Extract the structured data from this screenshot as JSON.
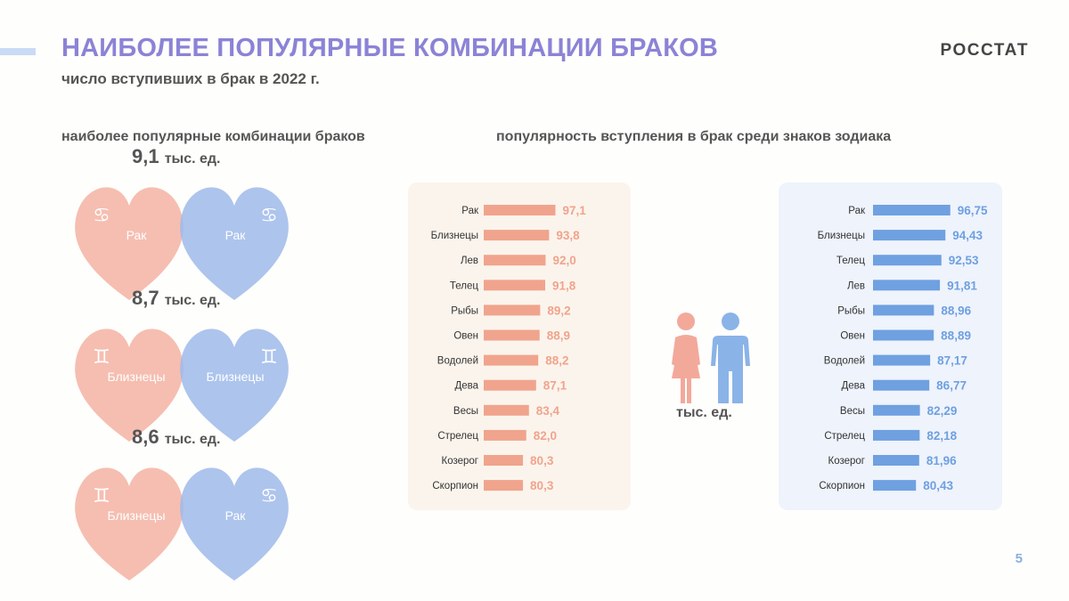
{
  "header": {
    "title": "НАИБОЛЕЕ ПОПУЛЯРНЫЕ КОМБИНАЦИИ БРАКОВ",
    "subtitle": "число вступивших в брак в 2022 г.",
    "org": "РОССТАТ"
  },
  "sections": {
    "left_title": "наиболее популярные комбинации браков",
    "right_title": "популярность вступления в брак среди знаков зодиака"
  },
  "combinations": [
    {
      "value": "9,1",
      "unit": "тыс. ед.",
      "female_sign": "Рак",
      "male_sign": "Рак",
      "female_symbol": "♋",
      "male_symbol": "♋"
    },
    {
      "value": "8,7",
      "unit": "тыс. ед.",
      "female_sign": "Близнецы",
      "male_sign": "Близнецы",
      "female_symbol": "♊",
      "male_symbol": "♊"
    },
    {
      "value": "8,6",
      "unit": "тыс. ед.",
      "female_sign": "Близнецы",
      "male_sign": "Рак",
      "female_symbol": "♊",
      "male_symbol": "♋"
    }
  ],
  "center": {
    "unit_label": "тыс. ед.",
    "icon": "woman-man-couple-icon"
  },
  "colors": {
    "title": "#8b83d6",
    "female": "#f0a48d",
    "male": "#6fa0e0",
    "female_heart": "#f3b3a3",
    "male_heart": "#9fbaea"
  },
  "page_number": "5",
  "chart_data": [
    {
      "type": "bar",
      "series_role": "female",
      "orientation": "horizontal",
      "categories": [
        "Рак",
        "Близнецы",
        "Лев",
        "Телец",
        "Рыбы",
        "Овен",
        "Водолей",
        "Дева",
        "Весы",
        "Стрелец",
        "Козерог",
        "Скорпион"
      ],
      "values": [
        97.1,
        93.8,
        92.0,
        91.8,
        89.2,
        88.9,
        88.2,
        87.1,
        83.4,
        82.0,
        80.3,
        80.3
      ],
      "labels": [
        "97,1",
        "93,8",
        "92,0",
        "91,8",
        "89,2",
        "88,9",
        "88,2",
        "87,1",
        "83,4",
        "82,0",
        "80,3",
        "80,3"
      ],
      "color": "#f0a48d"
    },
    {
      "type": "bar",
      "series_role": "male",
      "orientation": "horizontal",
      "categories": [
        "Рак",
        "Близнецы",
        "Телец",
        "Лев",
        "Рыбы",
        "Овен",
        "Водолей",
        "Дева",
        "Весы",
        "Стрелец",
        "Козерог",
        "Скорпион"
      ],
      "values": [
        96.75,
        94.43,
        92.53,
        91.81,
        88.96,
        88.89,
        87.17,
        86.77,
        82.29,
        82.18,
        81.96,
        80.43
      ],
      "labels": [
        "96,75",
        "94,43",
        "92,53",
        "91,81",
        "88,96",
        "88,89",
        "87,17",
        "86,77",
        "82,29",
        "82,18",
        "81,96",
        "80,43"
      ],
      "color": "#6fa0e0"
    }
  ]
}
